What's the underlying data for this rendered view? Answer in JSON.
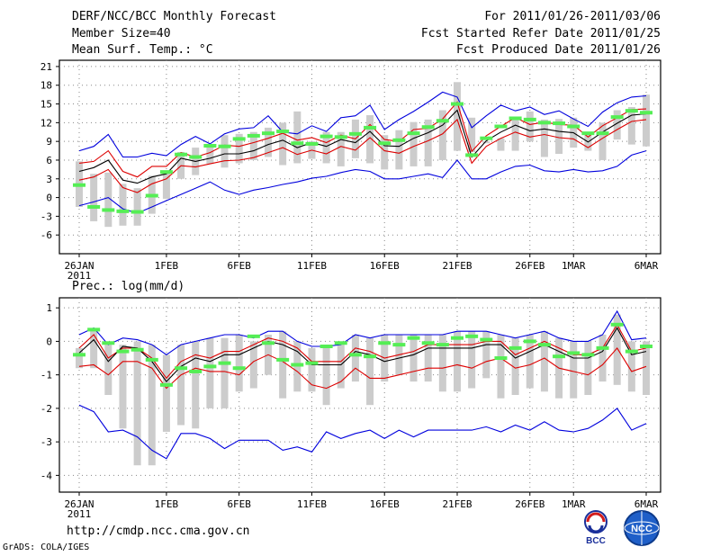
{
  "header": {
    "title": "DERF/NCC/BCC Monthly Forecast",
    "member_size": "Member Size=40",
    "variable": "Mean Surf. Temp.: °C",
    "period": "For 2011/01/26-2011/03/06",
    "started": "Fcst Started Refer Date 2011/01/25",
    "produced": "Fcst Produced Date 2011/01/26"
  },
  "footer": {
    "url": "http://cmdp.ncc.cma.gov.cn",
    "grads": "GrADS: COLA/IGES",
    "logo_bcc": "BCC",
    "logo_ncc": "NCC"
  },
  "colors": {
    "envelope": "#0000dd",
    "inner": "#dd0000",
    "mean": "#000000",
    "box": "#cccccc",
    "obs": "#55ee55"
  },
  "chart_data": [
    {
      "type": "line",
      "title": "Mean Surf. Temp.: °C",
      "x_labels": [
        "26JAN",
        "1FEB",
        "6FEB",
        "11FEB",
        "16FEB",
        "21FEB",
        "26FEB",
        "1MAR",
        "6MAR"
      ],
      "x_label_days": [
        0,
        6,
        11,
        16,
        21,
        26,
        31,
        34,
        39
      ],
      "year_label": "2011",
      "xlim": [
        0,
        39
      ],
      "ylim": [
        -9,
        22
      ],
      "yticks": [
        -6,
        -3,
        0,
        3,
        6,
        9,
        12,
        15,
        18,
        21
      ],
      "series": [
        {
          "name": "max",
          "color": "#0000dd",
          "values": [
            7.5,
            8.2,
            10.1,
            6.5,
            6.5,
            7.1,
            6.7,
            8.5,
            9.8,
            8.6,
            10.2,
            11,
            11.2,
            13.1,
            10.5,
            10.2,
            11.5,
            10.6,
            12.8,
            13.1,
            14.8,
            10.9,
            12.5,
            13.8,
            15.3,
            16.9,
            16.1,
            11.2,
            13.1,
            14.8,
            13.9,
            14.5,
            13.3,
            13.9,
            12.6,
            11.4,
            13.7,
            15.2,
            16.1,
            16.3
          ]
        },
        {
          "name": "upper",
          "color": "#dd0000",
          "values": [
            5.5,
            5.8,
            7.5,
            4.2,
            3.3,
            5,
            5,
            7.2,
            6.5,
            7.2,
            8.4,
            8.2,
            8.8,
            9.5,
            10.3,
            9.2,
            9.6,
            8.8,
            10,
            9.4,
            11.7,
            9.3,
            9,
            10.9,
            11.1,
            12.6,
            15.3,
            7.4,
            9.9,
            11.4,
            12.8,
            11.7,
            12.1,
            11.7,
            11.6,
            9.7,
            11.5,
            12.8,
            14.1,
            14.2
          ]
        },
        {
          "name": "mean",
          "color": "#000000",
          "values": [
            4.2,
            4.8,
            6,
            2.8,
            2.3,
            3.3,
            3.8,
            6.3,
            5.8,
            6.3,
            7,
            7,
            7.5,
            8.5,
            9.2,
            8,
            8.8,
            8.2,
            9.3,
            8.8,
            10.6,
            8.3,
            8.2,
            9.5,
            10.4,
            11.6,
            14,
            6.5,
            9.1,
            10.5,
            11.6,
            10.7,
            11,
            10.6,
            10.4,
            8.9,
            10.5,
            11.9,
            13.2,
            13.4
          ]
        },
        {
          "name": "lower",
          "color": "#dd0000",
          "values": [
            2.8,
            3.3,
            4.5,
            1.6,
            0.8,
            2.2,
            3,
            5.1,
            4.9,
            5.4,
            5.9,
            6,
            6.4,
            7.2,
            8,
            6.9,
            7.6,
            7,
            8.2,
            7.6,
            9.6,
            7.5,
            7.1,
            8.2,
            9.1,
            10.2,
            12.5,
            5.5,
            8.2,
            9.5,
            10.5,
            9.7,
            10.1,
            9.6,
            9.4,
            8,
            9.5,
            10.9,
            12.2,
            12.5
          ]
        },
        {
          "name": "min",
          "color": "#0000dd",
          "values": [
            -1.3,
            -0.7,
            0,
            -1.8,
            -2.5,
            -1.5,
            -0.5,
            0.5,
            1.5,
            2.5,
            1.2,
            0.5,
            1.2,
            1.6,
            2.1,
            2.5,
            3.1,
            3.4,
            4,
            4.5,
            4.2,
            3,
            3,
            3.4,
            3.8,
            3.2,
            6,
            3,
            3,
            4.1,
            5,
            5.2,
            4.3,
            4.1,
            4.5,
            4.1,
            4.3,
            5,
            6.8,
            7.5
          ]
        },
        {
          "name": "box_top",
          "color": "#cccccc",
          "values": [
            5.8,
            3.8,
            4,
            2.2,
            1.5,
            3.5,
            4.2,
            7.3,
            8,
            8.5,
            10,
            10.2,
            10.5,
            11.2,
            12,
            13.8,
            9,
            10.5,
            10.5,
            12.5,
            13.2,
            10,
            10.8,
            12.1,
            12.5,
            14,
            18.5,
            12.8,
            9,
            9.5,
            12.5,
            13.8,
            12.5,
            12.6,
            12.8,
            10.2,
            12,
            14,
            14.5,
            16.5
          ]
        },
        {
          "name": "box_bottom",
          "color": "#cccccc",
          "values": [
            -1.5,
            -3.8,
            -4.7,
            -4.5,
            -4.5,
            -2.6,
            -0.2,
            3,
            3.6,
            5.4,
            4.8,
            5.5,
            6,
            6.5,
            5.2,
            5.5,
            6.2,
            5.5,
            5,
            6.3,
            5.5,
            4.5,
            4.5,
            5,
            5,
            6,
            7.5,
            7.3,
            8.7,
            7.5,
            7.5,
            9,
            6.5,
            7,
            8,
            7.5,
            6,
            9.3,
            8.5,
            8.2
          ]
        },
        {
          "name": "observed",
          "color": "#55ee55",
          "values": [
            2,
            -1.5,
            -2,
            -2.2,
            -2.3,
            0.3,
            4.1,
            6.9,
            6.5,
            8.3,
            8.2,
            9.4,
            9.9,
            10.3,
            10.6,
            8.7,
            8.6,
            9.8,
            9.7,
            10.2,
            11.2,
            8.7,
            9.2,
            10.3,
            11.3,
            12.3,
            15,
            6.8,
            9.5,
            11.4,
            12.7,
            12.5,
            12,
            11.9,
            11.4,
            10.3,
            10.3,
            12.9,
            13.9,
            13.6
          ]
        }
      ]
    },
    {
      "type": "line",
      "title": "Prec.: log(mm/d)",
      "x_labels": [
        "26JAN",
        "1FEB",
        "6FEB",
        "11FEB",
        "16FEB",
        "21FEB",
        "26FEB",
        "1MAR",
        "6MAR"
      ],
      "x_label_days": [
        0,
        6,
        11,
        16,
        21,
        26,
        31,
        34,
        39
      ],
      "year_label": "2011",
      "xlim": [
        0,
        39
      ],
      "ylim": [
        -4.5,
        1.3
      ],
      "yticks": [
        -4,
        -3,
        -2,
        -1,
        0,
        1
      ],
      "series": [
        {
          "name": "max",
          "color": "#0000dd",
          "values": [
            0.2,
            0.4,
            -0.1,
            0.1,
            0.05,
            -0.1,
            -0.4,
            -0.1,
            0,
            0.1,
            0.2,
            0.2,
            0.1,
            0.3,
            0.3,
            0,
            -0.15,
            -0.15,
            -0.1,
            0.2,
            0.1,
            0.2,
            0.2,
            0.2,
            0.2,
            0.2,
            0.3,
            0.3,
            0.3,
            0.2,
            0.1,
            0.2,
            0.3,
            0.1,
            0,
            0,
            0.2,
            0.9,
            0.05,
            0.1
          ]
        },
        {
          "name": "upper",
          "color": "#dd0000",
          "values": [
            -0.2,
            0.2,
            -0.5,
            -0.2,
            -0.2,
            -0.5,
            -1.1,
            -0.6,
            -0.4,
            -0.5,
            -0.3,
            -0.3,
            -0.1,
            0.1,
            0,
            -0.2,
            -0.6,
            -0.6,
            -0.6,
            -0.2,
            -0.3,
            -0.5,
            -0.4,
            -0.3,
            -0.1,
            -0.1,
            -0.1,
            -0.1,
            0,
            0,
            -0.4,
            -0.2,
            0,
            -0.2,
            -0.4,
            -0.4,
            -0.2,
            0.5,
            -0.3,
            -0.2
          ]
        },
        {
          "name": "mean",
          "color": "#000000",
          "values": [
            -0.35,
            0.05,
            -0.6,
            -0.15,
            -0.2,
            -0.6,
            -1.2,
            -0.75,
            -0.5,
            -0.6,
            -0.4,
            -0.4,
            -0.2,
            0,
            -0.1,
            -0.3,
            -0.7,
            -0.7,
            -0.7,
            -0.3,
            -0.4,
            -0.6,
            -0.5,
            -0.4,
            -0.2,
            -0.2,
            -0.2,
            -0.2,
            -0.1,
            -0.1,
            -0.5,
            -0.3,
            -0.1,
            -0.3,
            -0.5,
            -0.5,
            -0.3,
            0.4,
            -0.4,
            -0.3
          ]
        },
        {
          "name": "lower",
          "color": "#dd0000",
          "values": [
            -0.75,
            -0.7,
            -1,
            -0.6,
            -0.6,
            -0.8,
            -1.4,
            -1,
            -0.8,
            -0.9,
            -0.9,
            -1,
            -0.6,
            -0.4,
            -0.6,
            -0.9,
            -1.3,
            -1.4,
            -1.2,
            -0.8,
            -1.1,
            -1.1,
            -1,
            -0.9,
            -0.8,
            -0.8,
            -0.7,
            -0.8,
            -0.6,
            -0.5,
            -0.8,
            -0.7,
            -0.5,
            -0.8,
            -0.9,
            -1,
            -0.7,
            -0.2,
            -0.9,
            -0.75
          ]
        },
        {
          "name": "min",
          "color": "#0000dd",
          "values": [
            -1.9,
            -2.1,
            -2.7,
            -2.65,
            -2.85,
            -3.25,
            -3.5,
            -2.75,
            -2.75,
            -2.9,
            -3.2,
            -2.95,
            -2.95,
            -2.95,
            -3.25,
            -3.15,
            -3.3,
            -2.7,
            -2.9,
            -2.75,
            -2.65,
            -2.9,
            -2.65,
            -2.85,
            -2.65,
            -2.65,
            -2.65,
            -2.65,
            -2.55,
            -2.7,
            -2.5,
            -2.65,
            -2.4,
            -2.65,
            -2.7,
            -2.6,
            -2.35,
            -2,
            -2.65,
            -2.45
          ]
        },
        {
          "name": "box_top",
          "color": "#cccccc",
          "values": [
            -0.2,
            0.4,
            -0.1,
            -0.1,
            0,
            -0.1,
            -0.4,
            -0.1,
            0,
            0.1,
            0.1,
            0.2,
            0,
            0.2,
            0.3,
            0,
            -0.2,
            -0.1,
            -0.1,
            0.2,
            0.1,
            0.2,
            0.2,
            0.2,
            0.2,
            0.2,
            0.3,
            0.3,
            0.3,
            0.2,
            0.1,
            0.2,
            0.3,
            0.1,
            0,
            0,
            0.2,
            0.8,
            0,
            0
          ]
        },
        {
          "name": "box_bottom",
          "color": "#cccccc",
          "values": [
            -0.8,
            -0.8,
            -1.6,
            -2.6,
            -3.7,
            -3.7,
            -2.7,
            -2.5,
            -2.6,
            -2,
            -2,
            -1.5,
            -1.4,
            -1,
            -1.7,
            -1.5,
            -1.5,
            -1.9,
            -1.4,
            -1.2,
            -1.9,
            -1.2,
            -1,
            -1.2,
            -1.2,
            -1.5,
            -1.5,
            -1.4,
            -1.1,
            -1.7,
            -1.6,
            -1.4,
            -1.5,
            -1.7,
            -1.7,
            -1.6,
            -1.2,
            -1.3,
            -1.5,
            -1.6
          ]
        },
        {
          "name": "observed",
          "color": "#55ee55",
          "values": [
            -0.4,
            0.35,
            -0.05,
            -0.3,
            -0.25,
            -0.55,
            -1.3,
            -0.8,
            -0.9,
            -0.75,
            -0.65,
            -0.8,
            0.15,
            -0.05,
            -0.55,
            -0.7,
            -0.65,
            -0.15,
            -0.05,
            -0.4,
            -0.45,
            -0.05,
            -0.1,
            0.1,
            -0.05,
            -0.1,
            0.1,
            0.15,
            0.05,
            -0.5,
            -0.2,
            0,
            -0.1,
            -0.45,
            -0.35,
            -0.4,
            -0.2,
            0.5,
            -0.3,
            -0.15
          ]
        }
      ]
    }
  ]
}
